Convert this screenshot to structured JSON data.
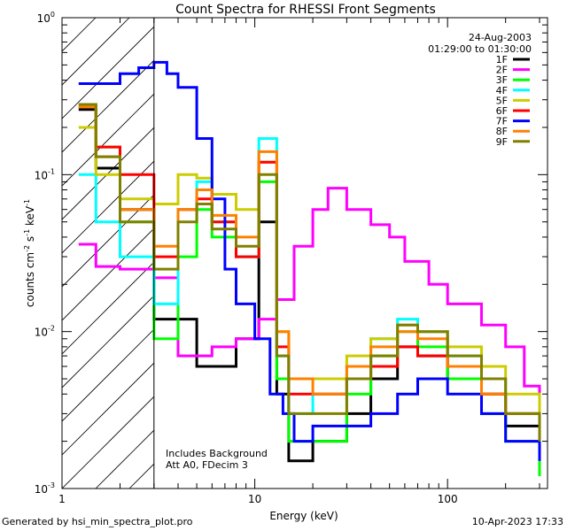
{
  "chart_data": {
    "type": "line",
    "title": "Count Spectra for RHESSI Front Segments",
    "xlabel": "Energy (keV)",
    "ylabel": "counts cm-2 s-1 keV-1",
    "ylabel_parts": {
      "base": "counts cm",
      "e1": "-2",
      "s": " s",
      "e2": "-1",
      "kev": " keV",
      "e3": "-1"
    },
    "xscale": "log",
    "yscale": "log",
    "xlim": [
      1.0,
      330.0
    ],
    "ylim": [
      0.001,
      1.0
    ],
    "x_ticks": [
      {
        "value": 1,
        "label": "1"
      },
      {
        "value": 10,
        "label": "10"
      },
      {
        "value": 100,
        "label": "100"
      }
    ],
    "y_ticks": [
      {
        "value": 0.001,
        "base": "10",
        "exp": "-3"
      },
      {
        "value": 0.01,
        "base": "10",
        "exp": "-2"
      },
      {
        "value": 0.1,
        "base": "10",
        "exp": "-1"
      },
      {
        "value": 1,
        "base": "10",
        "exp": "0"
      }
    ],
    "hatched_region": {
      "x_min": 1.0,
      "x_max": 3.0
    },
    "annotations": {
      "date": "24-Aug-2003",
      "time_range": "01:29:00 to 01:30:00",
      "bottom_left": [
        "Includes Background",
        "Att A0, FDecim 3"
      ]
    },
    "legend_position": "top-right",
    "series": [
      {
        "name": "1F",
        "color": "#000000",
        "x": [
          1.22,
          1.5,
          2,
          3,
          5,
          8,
          10.5,
          13,
          15,
          20,
          30,
          40,
          55,
          70,
          100,
          150,
          200,
          300
        ],
        "y": [
          0.26,
          0.11,
          0.06,
          0.012,
          0.006,
          0.009,
          0.05,
          0.004,
          0.0015,
          0.002,
          0.003,
          0.005,
          0.008,
          0.007,
          0.005,
          0.004,
          0.0025,
          0.0015
        ]
      },
      {
        "name": "2F",
        "color": "#ff00ff",
        "x": [
          1.22,
          1.5,
          2,
          3,
          4,
          6,
          8,
          10.5,
          13,
          16,
          20,
          24,
          30,
          40,
          50,
          60,
          80,
          100,
          150,
          200,
          250,
          300
        ],
        "y": [
          0.036,
          0.026,
          0.025,
          0.022,
          0.007,
          0.008,
          0.009,
          0.012,
          0.016,
          0.035,
          0.06,
          0.082,
          0.06,
          0.048,
          0.04,
          0.028,
          0.02,
          0.015,
          0.011,
          0.008,
          0.0045,
          0.004
        ]
      },
      {
        "name": "3F",
        "color": "#00ff00",
        "x": [
          1.22,
          1.5,
          2,
          3,
          4,
          5,
          6,
          8,
          10.5,
          13,
          15,
          20,
          30,
          40,
          55,
          70,
          100,
          150,
          200,
          300
        ],
        "y": [
          0.28,
          0.15,
          0.05,
          0.009,
          0.03,
          0.06,
          0.04,
          0.03,
          0.09,
          0.005,
          0.002,
          0.002,
          0.004,
          0.007,
          0.01,
          0.008,
          0.005,
          0.003,
          0.002,
          0.0012
        ]
      },
      {
        "name": "4F",
        "color": "#00ffff",
        "x": [
          1.22,
          1.5,
          2,
          3,
          4,
          5,
          6,
          8,
          10.5,
          13,
          15,
          20,
          30,
          40,
          55,
          70,
          100,
          150,
          200,
          300
        ],
        "y": [
          0.1,
          0.05,
          0.03,
          0.015,
          0.06,
          0.09,
          0.05,
          0.03,
          0.17,
          0.007,
          0.003,
          0.004,
          0.006,
          0.009,
          0.012,
          0.01,
          0.007,
          0.005,
          0.003,
          0.002
        ]
      },
      {
        "name": "5F",
        "color": "#cccc00",
        "x": [
          1.22,
          1.5,
          2,
          3,
          4,
          5,
          6,
          8,
          10.5,
          13,
          15,
          20,
          30,
          40,
          55,
          70,
          100,
          150,
          200,
          300
        ],
        "y": [
          0.2,
          0.1,
          0.07,
          0.065,
          0.1,
          0.095,
          0.075,
          0.06,
          0.12,
          0.01,
          0.005,
          0.005,
          0.007,
          0.009,
          0.011,
          0.01,
          0.008,
          0.006,
          0.004,
          0.003
        ]
      },
      {
        "name": "6F",
        "color": "#ff0000",
        "x": [
          1.22,
          1.5,
          2,
          3,
          4,
          5,
          6,
          8,
          10.5,
          13,
          15,
          20,
          30,
          40,
          55,
          70,
          100,
          150,
          200,
          300
        ],
        "y": [
          0.27,
          0.15,
          0.1,
          0.03,
          0.06,
          0.07,
          0.05,
          0.03,
          0.12,
          0.008,
          0.004,
          0.004,
          0.005,
          0.006,
          0.008,
          0.007,
          0.006,
          0.004,
          0.003,
          0.002
        ]
      },
      {
        "name": "7F",
        "color": "#0000ff",
        "x": [
          1.22,
          1.6,
          2,
          2.5,
          3,
          3.5,
          4,
          5,
          6,
          7,
          8,
          10,
          12,
          14,
          16,
          20,
          30,
          40,
          55,
          70,
          100,
          150,
          200,
          300
        ],
        "y": [
          0.38,
          0.38,
          0.44,
          0.48,
          0.52,
          0.44,
          0.36,
          0.17,
          0.07,
          0.025,
          0.015,
          0.009,
          0.004,
          0.003,
          0.002,
          0.0025,
          0.0025,
          0.003,
          0.004,
          0.005,
          0.004,
          0.003,
          0.002,
          0.0015
        ]
      },
      {
        "name": "8F",
        "color": "#ff8000",
        "x": [
          1.22,
          1.5,
          2,
          3,
          4,
          5,
          6,
          8,
          10.5,
          13,
          15,
          20,
          30,
          40,
          55,
          70,
          100,
          150,
          200,
          300
        ],
        "y": [
          0.27,
          0.13,
          0.06,
          0.035,
          0.06,
          0.08,
          0.055,
          0.04,
          0.14,
          0.01,
          0.005,
          0.004,
          0.006,
          0.008,
          0.01,
          0.009,
          0.006,
          0.004,
          0.003,
          0.002
        ]
      },
      {
        "name": "9F",
        "color": "#808000",
        "x": [
          1.22,
          1.5,
          2,
          3,
          4,
          5,
          6,
          8,
          10.5,
          13,
          15,
          20,
          30,
          40,
          55,
          70,
          100,
          150,
          200,
          300
        ],
        "y": [
          0.28,
          0.13,
          0.05,
          0.025,
          0.05,
          0.065,
          0.045,
          0.035,
          0.1,
          0.007,
          0.003,
          0.003,
          0.005,
          0.007,
          0.011,
          0.01,
          0.007,
          0.005,
          0.003,
          0.002
        ]
      }
    ]
  },
  "footer": {
    "generated_by": "Generated by hsi_min_spectra_plot.pro",
    "timestamp": "10-Apr-2023 17:33"
  }
}
